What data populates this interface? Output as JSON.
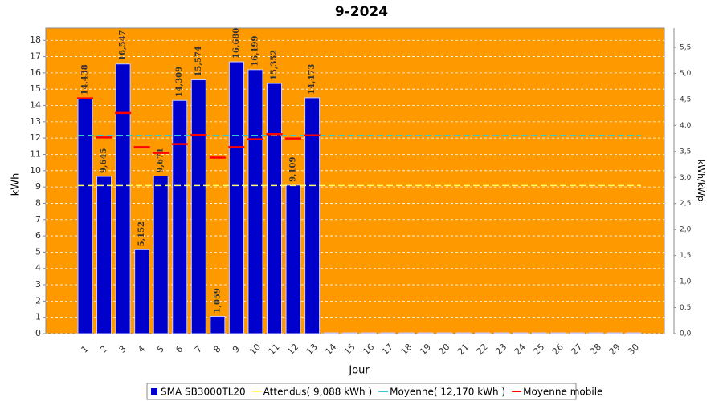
{
  "chart_data": {
    "type": "bar",
    "title": "9-2024",
    "x_label": "Jour",
    "y_label": "kWh",
    "y2_label": "kWh/kWp",
    "categories": [
      "1",
      "2",
      "3",
      "4",
      "5",
      "6",
      "7",
      "8",
      "9",
      "10",
      "11",
      "12",
      "13",
      "14",
      "15",
      "16",
      "17",
      "18",
      "19",
      "20",
      "21",
      "22",
      "23",
      "24",
      "25",
      "26",
      "27",
      "28",
      "29",
      "30"
    ],
    "series": [
      {
        "name": "SMA SB3000TL20",
        "color": "#0000cc",
        "values": [
          14.438,
          9.645,
          16.547,
          5.152,
          9.671,
          14.309,
          15.574,
          1.059,
          16.68,
          16.199,
          15.352,
          9.109,
          14.473,
          0,
          0,
          0,
          0,
          0,
          0,
          0,
          0,
          0,
          0,
          0,
          0,
          0,
          0,
          0,
          0,
          0
        ],
        "value_labels": [
          "14,438",
          "9,645",
          "16,547",
          "5,152",
          "9,671",
          "14,309",
          "15,574",
          "1,059",
          "16,680",
          "16,199",
          "15,352",
          "9,109",
          "14,473",
          null,
          null,
          null,
          null,
          null,
          null,
          null,
          null,
          null,
          null,
          null,
          null,
          null,
          null,
          null,
          null,
          null
        ]
      },
      {
        "name": "Moyenne mobile",
        "color": "#ff0000",
        "values": [
          14.44,
          12.04,
          13.54,
          11.45,
          11.09,
          11.63,
          12.19,
          10.8,
          11.45,
          11.93,
          12.24,
          11.98,
          12.17,
          null,
          null,
          null,
          null,
          null,
          null,
          null,
          null,
          null,
          null,
          null,
          null,
          null,
          null,
          null,
          null,
          null
        ]
      }
    ],
    "reference_lines": [
      {
        "name": "Attendus( 9,088 kWh )",
        "color": "#ffff66",
        "value": 9.088
      },
      {
        "name": "Moyenne( 12,170 kWh )",
        "color": "#33cccc",
        "value": 12.17
      }
    ],
    "ylim": [
      0,
      18.75
    ],
    "yticks": [
      0,
      1,
      2,
      3,
      4,
      5,
      6,
      7,
      8,
      9,
      10,
      11,
      12,
      13,
      14,
      15,
      16,
      17,
      18
    ],
    "y2lim": [
      0,
      5.87
    ],
    "y2ticks": [
      {
        "value": 0,
        "label": "0,0"
      },
      {
        "value": 0.5,
        "label": "0,5"
      },
      {
        "value": 1,
        "label": "1,0"
      },
      {
        "value": 1.5,
        "label": "1,5"
      },
      {
        "value": 2,
        "label": "2,0"
      },
      {
        "value": 2.5,
        "label": "2,5"
      },
      {
        "value": 3,
        "label": "3,0"
      },
      {
        "value": 3.5,
        "label": "3,5"
      },
      {
        "value": 4,
        "label": "4,0"
      },
      {
        "value": 4.5,
        "label": "4,5"
      },
      {
        "value": 5,
        "label": "5,0"
      },
      {
        "value": 5.5,
        "label": "5,5"
      }
    ],
    "grid": true
  }
}
